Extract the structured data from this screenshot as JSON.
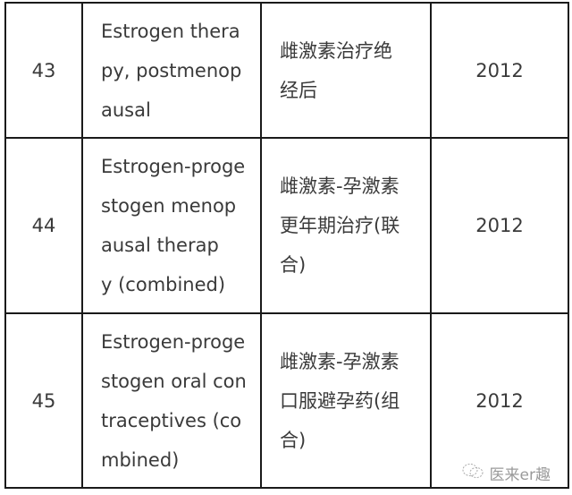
{
  "rows": [
    {
      "number": "43",
      "english": [
        "Estrogen thera",
        "py, postmenop",
        "ausal"
      ],
      "chinese": [
        "雌激素治疗绝",
        "经后"
      ],
      "year": "2012"
    },
    {
      "number": "44",
      "english": [
        "Estrogen-proge",
        "stogen menop",
        "ausal therap",
        "y (combined)"
      ],
      "chinese": [
        "雌激素-孕激素",
        "更年期治疗(联",
        "合)"
      ],
      "year": "2012"
    },
    {
      "number": "45",
      "english": [
        "Estrogen-proge",
        "stogen oral con",
        "traceptives (co",
        "mbined)"
      ],
      "chinese": [
        "雌激素-孕激素",
        "口服避孕药(组",
        "合)"
      ],
      "year": "2012"
    }
  ],
  "watermark": {
    "text": "医来er趣",
    "icon": "wechat-icon"
  }
}
